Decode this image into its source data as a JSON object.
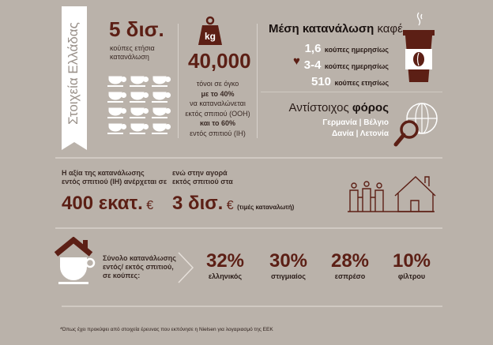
{
  "banner": {
    "title": "Στοιχεία Ελλάδας"
  },
  "cups_stat": {
    "value": "5 δισ.",
    "label_1": "κούπες ετήσια",
    "label_2": "κατανάλωση"
  },
  "weight_stat": {
    "icon_text": "kg",
    "value": "40,000",
    "lines": [
      "τόνοι σε όγκο",
      "με το 40%",
      "να καταναλώνεται",
      "εκτός σπιτιού (OOH)",
      "και το 60%",
      "εντός σπιτιού (IH)"
    ]
  },
  "average": {
    "title_bold": "Μέση κατανάλωση",
    "title_light": "καφέ",
    "rows": [
      {
        "num": "1,6",
        "text": "κούπες ημερησίως"
      },
      {
        "num": "3-4",
        "text": "κούπες ημερησίως"
      },
      {
        "num": "510",
        "text": "κούπες ετησίως"
      }
    ]
  },
  "tax": {
    "title_light": "Αντίστοιχος",
    "title_bold": "φόρος",
    "line_1": "Γερμανία | Βέλγιο",
    "line_2": "Δανία | Λετονία"
  },
  "value_home": {
    "line_1": "Η αξία της κατανάλωσης",
    "line_2": "εντός σπιτιού (IH) ανέρχεται σε",
    "amount": "400 εκατ.",
    "currency": "€"
  },
  "value_out": {
    "line_1": "ενώ στην αγορά",
    "line_2": "εκτός σπιτιού στα",
    "amount": "3 δισ.",
    "currency": "€",
    "note": "(τιμές καταναλωτή)"
  },
  "breakdown": {
    "label_1": "Σύνολο κατανάλωσης",
    "label_2": "εντός/ εκτός σπιτιού,",
    "label_3": "σε κούπες:",
    "items": [
      {
        "pct": "32%",
        "name": "ελληνικός"
      },
      {
        "pct": "30%",
        "name": "στιγμιαίος"
      },
      {
        "pct": "28%",
        "name": "εσπρέσο"
      },
      {
        "pct": "10%",
        "name": "φίλτρου"
      }
    ]
  },
  "footnote": "*Όπως έχει προκύψει από στοιχεία έρευνας που εκπόνησε η Nielsen για λογαριασμό της ΕΕΚ",
  "colors": {
    "background": "#bab2aa",
    "brown": "#5c1f15",
    "white": "#ffffff"
  }
}
